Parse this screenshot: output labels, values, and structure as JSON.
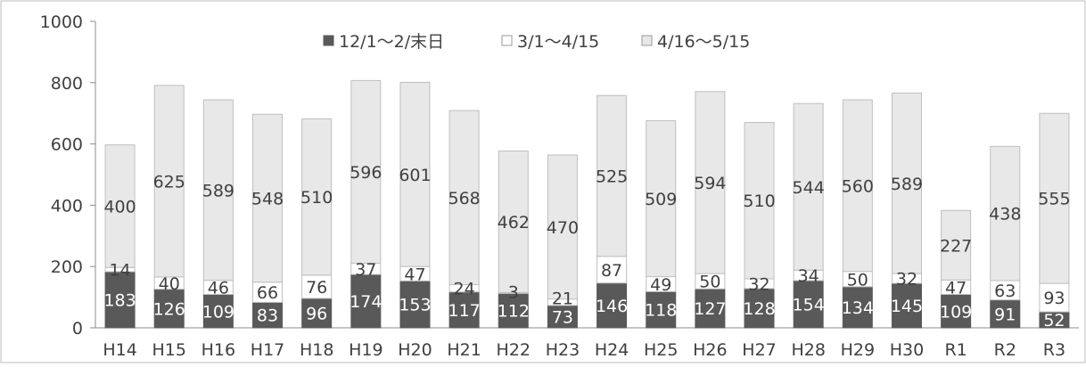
{
  "chart_data": {
    "type": "bar",
    "stacked": true,
    "categories": [
      "H14",
      "H15",
      "H16",
      "H17",
      "H18",
      "H19",
      "H20",
      "H21",
      "H22",
      "H23",
      "H24",
      "H25",
      "H26",
      "H27",
      "H28",
      "H29",
      "H30",
      "R1",
      "R2",
      "R3"
    ],
    "series": [
      {
        "name": "12/1〜2/末日",
        "color": "#595959",
        "values": [
          183,
          126,
          109,
          83,
          96,
          174,
          153,
          117,
          112,
          73,
          146,
          118,
          127,
          128,
          154,
          134,
          145,
          109,
          91,
          52
        ]
      },
      {
        "name": "3/1〜4/15",
        "color": "#ffffff",
        "values": [
          14,
          40,
          46,
          66,
          76,
          37,
          47,
          24,
          3,
          21,
          87,
          49,
          50,
          32,
          34,
          50,
          32,
          47,
          63,
          93
        ]
      },
      {
        "name": "4/16〜5/15",
        "color": "#e8e8e8",
        "values": [
          400,
          625,
          589,
          548,
          510,
          596,
          601,
          568,
          462,
          470,
          525,
          509,
          594,
          510,
          544,
          560,
          589,
          227,
          438,
          555
        ]
      }
    ],
    "ylim": [
      0,
      1000
    ],
    "yticks": [
      "0",
      "200",
      "400",
      "600",
      "800",
      "1000"
    ],
    "legend_position": "top-center",
    "grid": false
  }
}
